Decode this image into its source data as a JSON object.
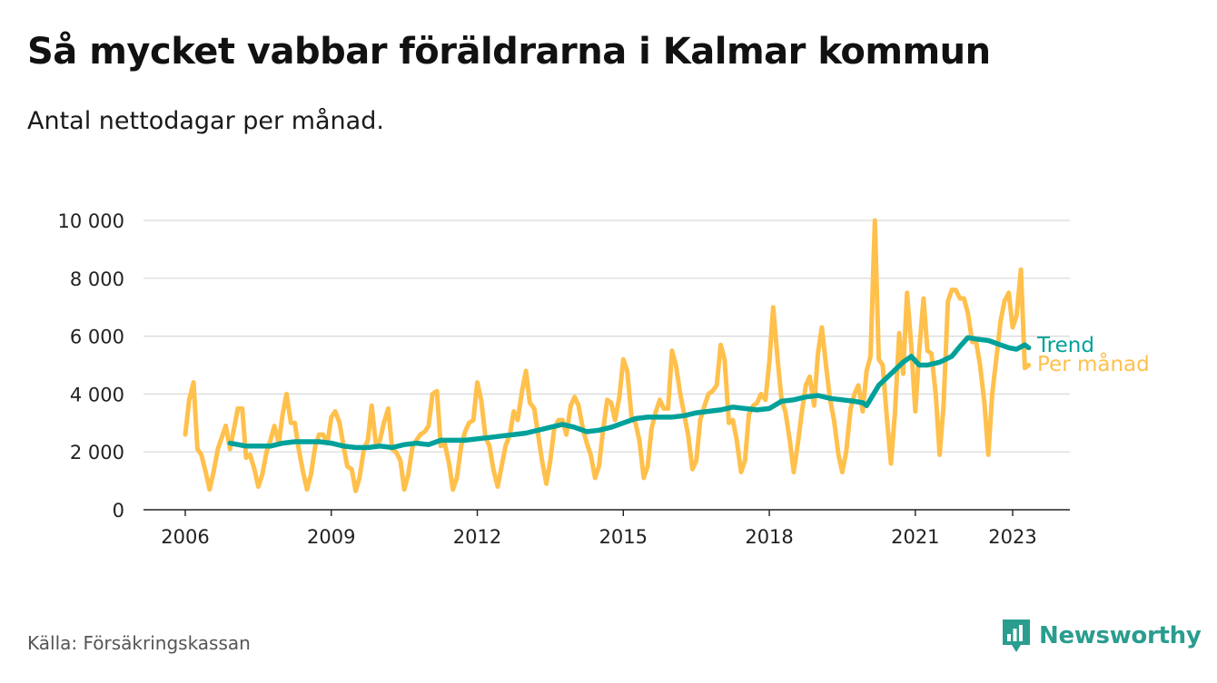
{
  "header": {
    "title": "Så mycket vabbar föräldrarna i Kalmar kommun",
    "subtitle": "Antal nettodagar per månad."
  },
  "footer": {
    "source": "Källa: Försäkringskassan",
    "brand": "Newsworthy"
  },
  "colors": {
    "monthly": "#FFC04C",
    "trend": "#00A19A",
    "grid": "#d9d9d9",
    "brand": "#2a9d8f"
  },
  "chart_data": {
    "type": "line",
    "title": "Så mycket vabbar föräldrarna i Kalmar kommun",
    "subtitle": "Antal nettodagar per månad.",
    "xlabel": "",
    "ylabel": "",
    "ylim": [
      0,
      10000
    ],
    "xlim": [
      2006,
      2023.8
    ],
    "y_ticks": [
      0,
      2000,
      4000,
      6000,
      8000,
      10000
    ],
    "y_tick_labels": [
      "0",
      "2 000",
      "4 000",
      "6 000",
      "8 000",
      "10 000"
    ],
    "x_ticks": [
      2006,
      2009,
      2012,
      2015,
      2018,
      2021,
      2023
    ],
    "x_tick_labels": [
      "2006",
      "2009",
      "2012",
      "2015",
      "2018",
      "2021",
      "2023"
    ],
    "grid": true,
    "legend": "inline-right",
    "series": [
      {
        "name": "Per månad",
        "x": [
          2006.0,
          2006.08,
          2006.17,
          2006.25,
          2006.33,
          2006.42,
          2006.5,
          2006.58,
          2006.67,
          2006.75,
          2006.83,
          2006.92,
          2007.0,
          2007.08,
          2007.17,
          2007.25,
          2007.33,
          2007.42,
          2007.5,
          2007.58,
          2007.67,
          2007.75,
          2007.83,
          2007.92,
          2008.0,
          2008.08,
          2008.17,
          2008.25,
          2008.33,
          2008.42,
          2008.5,
          2008.58,
          2008.67,
          2008.75,
          2008.83,
          2008.92,
          2009.0,
          2009.08,
          2009.17,
          2009.25,
          2009.33,
          2009.42,
          2009.5,
          2009.58,
          2009.67,
          2009.75,
          2009.83,
          2009.92,
          2010.0,
          2010.08,
          2010.17,
          2010.25,
          2010.33,
          2010.42,
          2010.5,
          2010.58,
          2010.67,
          2010.75,
          2010.83,
          2010.92,
          2011.0,
          2011.08,
          2011.17,
          2011.25,
          2011.33,
          2011.42,
          2011.5,
          2011.58,
          2011.67,
          2011.75,
          2011.83,
          2011.92,
          2012.0,
          2012.08,
          2012.17,
          2012.25,
          2012.33,
          2012.42,
          2012.5,
          2012.58,
          2012.67,
          2012.75,
          2012.83,
          2012.92,
          2013.0,
          2013.08,
          2013.17,
          2013.25,
          2013.33,
          2013.42,
          2013.5,
          2013.58,
          2013.67,
          2013.75,
          2013.83,
          2013.92,
          2014.0,
          2014.08,
          2014.17,
          2014.25,
          2014.33,
          2014.42,
          2014.5,
          2014.58,
          2014.67,
          2014.75,
          2014.83,
          2014.92,
          2015.0,
          2015.08,
          2015.17,
          2015.25,
          2015.33,
          2015.42,
          2015.5,
          2015.58,
          2015.67,
          2015.75,
          2015.83,
          2015.92,
          2016.0,
          2016.08,
          2016.17,
          2016.25,
          2016.33,
          2016.42,
          2016.5,
          2016.58,
          2016.67,
          2016.75,
          2016.83,
          2016.92,
          2017.0,
          2017.08,
          2017.17,
          2017.25,
          2017.33,
          2017.42,
          2017.5,
          2017.58,
          2017.67,
          2017.75,
          2017.83,
          2017.92,
          2018.0,
          2018.08,
          2018.17,
          2018.25,
          2018.33,
          2018.42,
          2018.5,
          2018.58,
          2018.67,
          2018.75,
          2018.83,
          2018.92,
          2019.0,
          2019.08,
          2019.17,
          2019.25,
          2019.33,
          2019.42,
          2019.5,
          2019.58,
          2019.67,
          2019.75,
          2019.83,
          2019.92,
          2020.0,
          2020.08,
          2020.17,
          2020.25,
          2020.33,
          2020.42,
          2020.5,
          2020.58,
          2020.67,
          2020.75,
          2020.83,
          2020.92,
          2021.0,
          2021.08,
          2021.17,
          2021.25,
          2021.33,
          2021.42,
          2021.5,
          2021.58,
          2021.67,
          2021.75,
          2021.83,
          2021.92,
          2022.0,
          2022.08,
          2022.17,
          2022.25,
          2022.33,
          2022.42,
          2022.5,
          2022.58,
          2022.67,
          2022.75,
          2022.83,
          2022.92,
          2023.0,
          2023.08,
          2023.17,
          2023.25,
          2023.33
        ],
        "values": [
          2600,
          3800,
          4400,
          2100,
          1900,
          1300,
          700,
          1300,
          2100,
          2500,
          2900,
          2100,
          2800,
          3500,
          3500,
          1800,
          1900,
          1400,
          800,
          1200,
          2000,
          2400,
          2900,
          2300,
          3300,
          4000,
          3000,
          3000,
          2100,
          1300,
          700,
          1200,
          2200,
          2600,
          2600,
          2300,
          3200,
          3400,
          3000,
          2200,
          1500,
          1400,
          650,
          1100,
          2100,
          2400,
          3600,
          2200,
          2400,
          3000,
          3500,
          2100,
          2000,
          1700,
          700,
          1200,
          2200,
          2400,
          2600,
          2700,
          2900,
          4000,
          4100,
          2200,
          2300,
          1600,
          700,
          1100,
          2200,
          2700,
          3000,
          3100,
          4400,
          3800,
          2500,
          2200,
          1400,
          800,
          1500,
          2200,
          2600,
          3400,
          3100,
          4100,
          4800,
          3700,
          3500,
          2600,
          1700,
          900,
          1700,
          2800,
          3100,
          3100,
          2600,
          3600,
          3900,
          3600,
          2800,
          2300,
          1900,
          1100,
          1500,
          2700,
          3800,
          3700,
          3100,
          3900,
          5200,
          4800,
          3200,
          3000,
          2400,
          1100,
          1500,
          2800,
          3400,
          3800,
          3500,
          3500,
          5500,
          5000,
          4000,
          3300,
          2600,
          1400,
          1700,
          3100,
          3600,
          4000,
          4100,
          4300,
          5700,
          5200,
          3000,
          3100,
          2400,
          1300,
          1700,
          3300,
          3600,
          3700,
          4000,
          3800,
          5100,
          7000,
          5200,
          3800,
          3400,
          2400,
          1300,
          2200,
          3400,
          4300,
          4600,
          3600,
          5400,
          6300,
          4900,
          3800,
          3100,
          1900,
          1300,
          2000,
          3500,
          4000,
          4300,
          3400,
          4800,
          5300,
          10000,
          5200,
          5000,
          3100,
          1600,
          3300,
          6100,
          4700,
          7500,
          5600,
          3400,
          5500,
          7300,
          5500,
          5400,
          4000,
          1900,
          3600,
          7200,
          7600,
          7600,
          7300,
          7300,
          6800,
          5800,
          5800,
          5000,
          3700,
          1900,
          4000,
          5300,
          6500,
          7200,
          7500,
          6300,
          6700,
          8300,
          4900,
          5000
        ]
      },
      {
        "name": "Trend",
        "x": [
          2006.92,
          2007.25,
          2007.5,
          2007.75,
          2008.0,
          2008.25,
          2008.5,
          2008.75,
          2009.0,
          2009.25,
          2009.5,
          2009.75,
          2010.0,
          2010.25,
          2010.5,
          2010.75,
          2011.0,
          2011.25,
          2011.5,
          2011.75,
          2012.0,
          2012.25,
          2012.5,
          2012.75,
          2013.0,
          2013.25,
          2013.5,
          2013.75,
          2014.0,
          2014.25,
          2014.5,
          2014.75,
          2015.0,
          2015.25,
          2015.5,
          2015.75,
          2016.0,
          2016.25,
          2016.5,
          2016.75,
          2017.0,
          2017.25,
          2017.5,
          2017.75,
          2018.0,
          2018.25,
          2018.5,
          2018.75,
          2019.0,
          2019.25,
          2019.5,
          2019.75,
          2019.92,
          2020.0,
          2020.25,
          2020.5,
          2020.75,
          2020.92,
          2021.08,
          2021.25,
          2021.5,
          2021.75,
          2021.92,
          2022.08,
          2022.25,
          2022.5,
          2022.75,
          2022.92,
          2023.08,
          2023.25,
          2023.33
        ],
        "values": [
          2300,
          2200,
          2200,
          2200,
          2300,
          2350,
          2350,
          2350,
          2300,
          2200,
          2150,
          2150,
          2200,
          2150,
          2250,
          2300,
          2250,
          2400,
          2400,
          2400,
          2450,
          2500,
          2550,
          2600,
          2650,
          2750,
          2850,
          2950,
          2850,
          2700,
          2750,
          2850,
          3000,
          3150,
          3200,
          3200,
          3200,
          3250,
          3350,
          3400,
          3450,
          3550,
          3500,
          3450,
          3500,
          3750,
          3800,
          3900,
          3950,
          3850,
          3800,
          3750,
          3700,
          3600,
          4300,
          4700,
          5100,
          5300,
          5000,
          5000,
          5100,
          5300,
          5650,
          5950,
          5900,
          5850,
          5700,
          5600,
          5550,
          5700,
          5600
        ]
      }
    ]
  }
}
